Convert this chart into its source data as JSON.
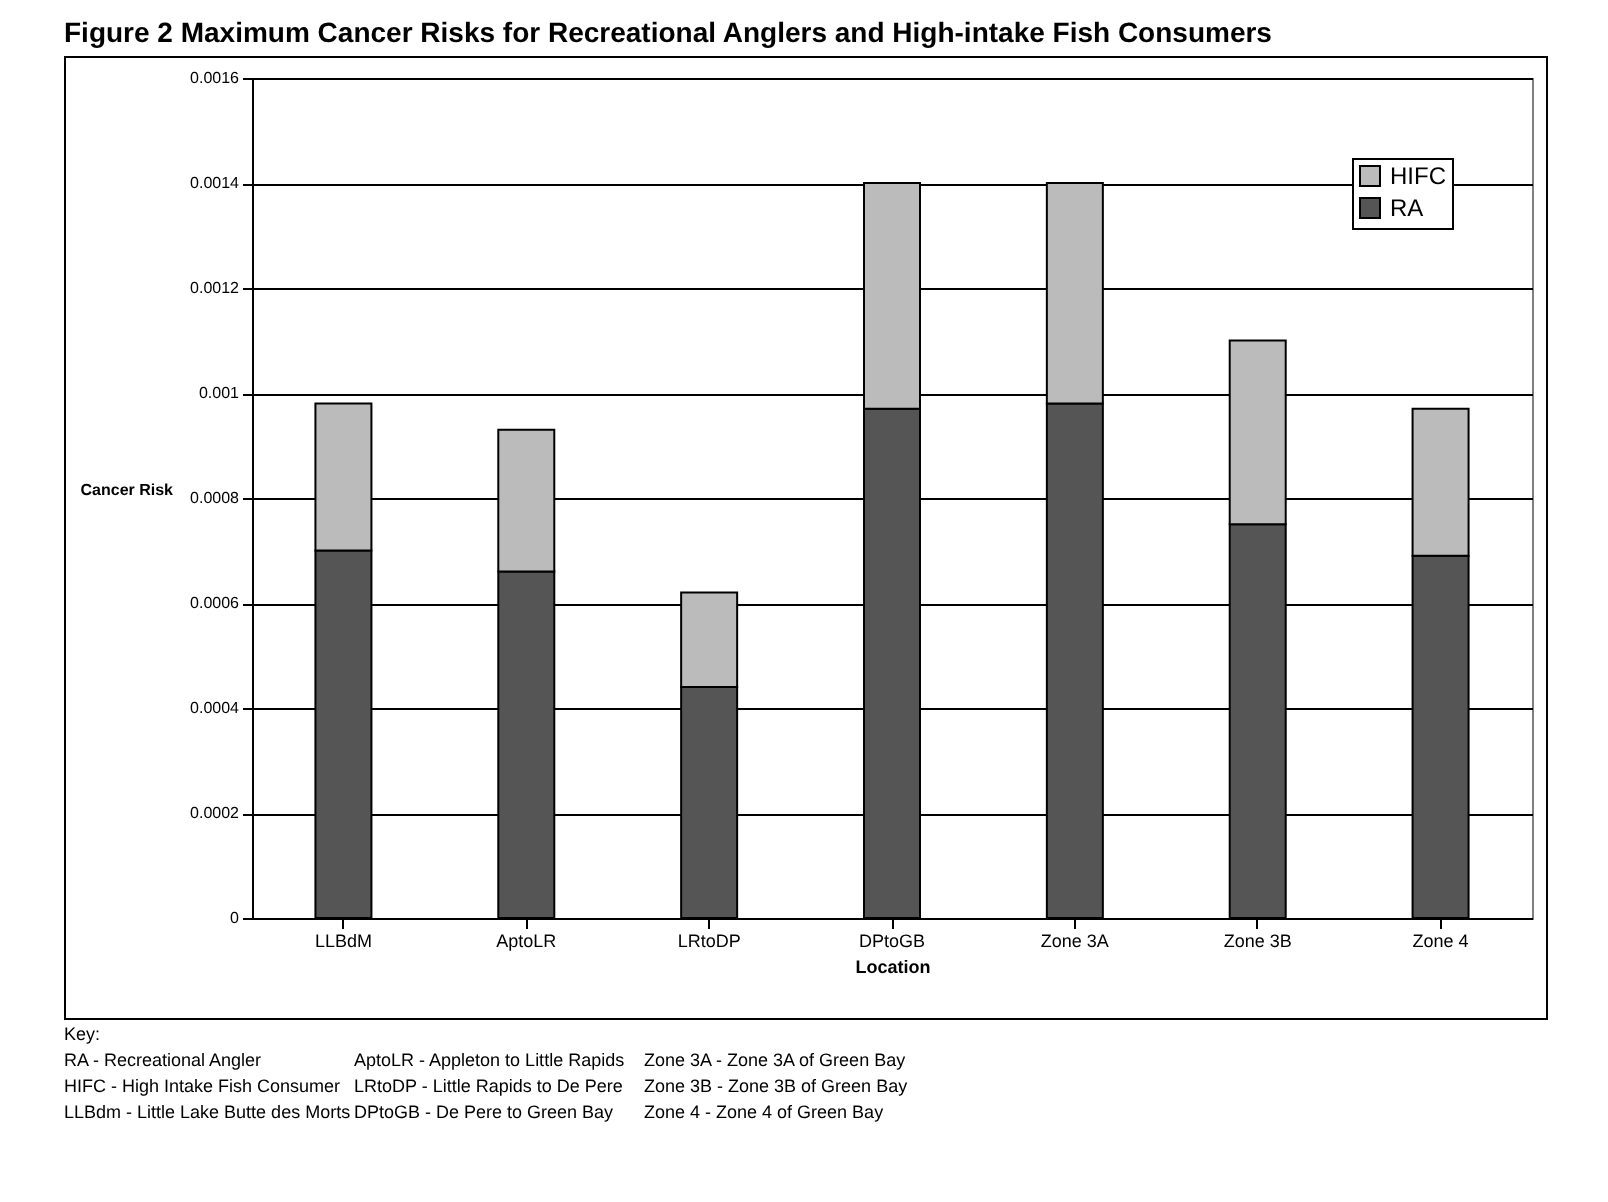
{
  "chart_data": {
    "type": "bar",
    "title": "Figure 2 Maximum Cancer Risks for Recreational Anglers and High-intake Fish Consumers",
    "xlabel": "Location",
    "ylabel": "Cancer Risk",
    "categories": [
      "LLBdM",
      "AptoLR",
      "LRtoDP",
      "DPtoGB",
      "Zone 3A",
      "Zone 3B",
      "Zone 4"
    ],
    "stacked": true,
    "series": [
      {
        "name": "RA",
        "color": "#555555",
        "values": [
          0.0007,
          0.00066,
          0.00044,
          0.00097,
          0.00098,
          0.00075,
          0.00069
        ]
      },
      {
        "name": "HIFC",
        "color": "#bbbbbb",
        "values": [
          0.00028,
          0.00027,
          0.00018,
          0.00043,
          0.00042,
          0.00035,
          0.00028
        ]
      }
    ],
    "ylim": [
      0,
      0.0016
    ],
    "yticks": [
      0,
      0.0002,
      0.0004,
      0.0006,
      0.0008,
      0.001,
      0.0012,
      0.0014,
      0.0016
    ],
    "grid": "y",
    "legend": "top right",
    "annotations": [
      "Key:",
      "RA - Recreational Angler",
      "HIFC - High Intake Fish Consumer",
      "LLBdm - Little Lake Butte des Morts",
      "AptoLR - Appleton to Little Rapids",
      "LRtoDP - Little Rapids to De Pere",
      "DPtoGB - De Pere to Green Bay",
      "Zone 3A - Zone 3A of Green Bay",
      "Zone 3B - Zone 3B of Green Bay",
      "Zone 4 - Zone 4 of Green Bay"
    ]
  }
}
